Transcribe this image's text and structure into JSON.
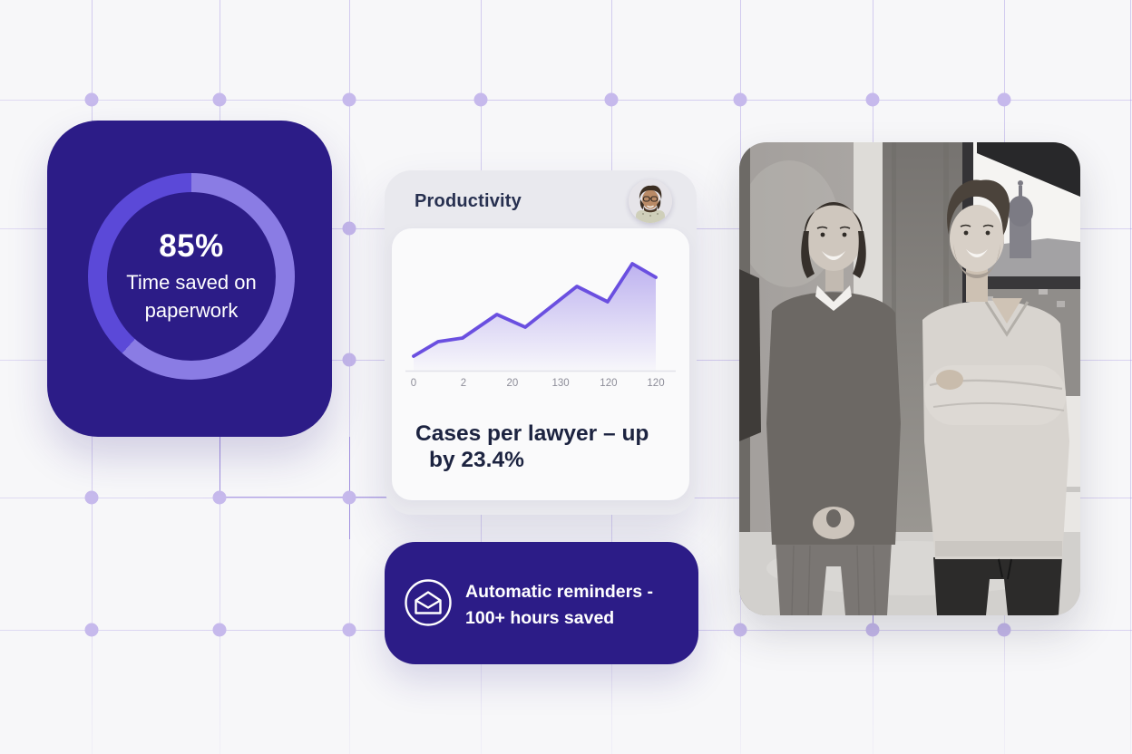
{
  "theme": {
    "accent_indigo": "#2c1c87",
    "ring_light": "#8a7ce4",
    "ring_dark": "#5b49d8",
    "chart_line": "#6a4fe0",
    "grid_dot": "#c6b9ec",
    "card_gray": "#e9e9ee",
    "panel_white": "#fafafb",
    "text_dark": "#1c2340",
    "text_white": "#ffffff"
  },
  "stat_card": {
    "value": "85%",
    "label_line1": "Time saved on",
    "label_line2": "paperwork",
    "ring_segments": [
      {
        "color": "#8a7ce4",
        "start_deg": 0,
        "end_deg": 222
      },
      {
        "color": "#5b49d8",
        "start_deg": 222,
        "end_deg": 360
      }
    ]
  },
  "productivity_card": {
    "title": "Productivity",
    "avatar": "curly-haired-man-with-glasses",
    "caption_line1": "Cases per lawyer – up",
    "caption_line2": "by 23.4%"
  },
  "chart_data": {
    "type": "line",
    "title": "Productivity",
    "caption": "Cases per lawyer – up by 23.4%",
    "x_tick_labels": [
      "0",
      "2",
      "20",
      "130",
      "120",
      "120"
    ],
    "x_tick_positions": [
      0,
      0.206,
      0.408,
      0.607,
      0.805,
      1.0
    ],
    "points": [
      {
        "x": 0.0,
        "y": 13.6
      },
      {
        "x": 0.101,
        "y": 27.1
      },
      {
        "x": 0.202,
        "y": 30.5
      },
      {
        "x": 0.344,
        "y": 52.5
      },
      {
        "x": 0.461,
        "y": 40.7
      },
      {
        "x": 0.674,
        "y": 78.8
      },
      {
        "x": 0.801,
        "y": 64.4
      },
      {
        "x": 0.903,
        "y": 100.0
      },
      {
        "x": 1.0,
        "y": 87.3
      }
    ],
    "ylim": [
      0,
      110
    ],
    "grid": false,
    "legend": false,
    "line_color": "#6a4fe0",
    "fill": "vertical-fade-gradient"
  },
  "reminder_card": {
    "icon": "open-envelope-icon",
    "line1": "Automatic reminders -",
    "line2": "100+ hours saved"
  }
}
